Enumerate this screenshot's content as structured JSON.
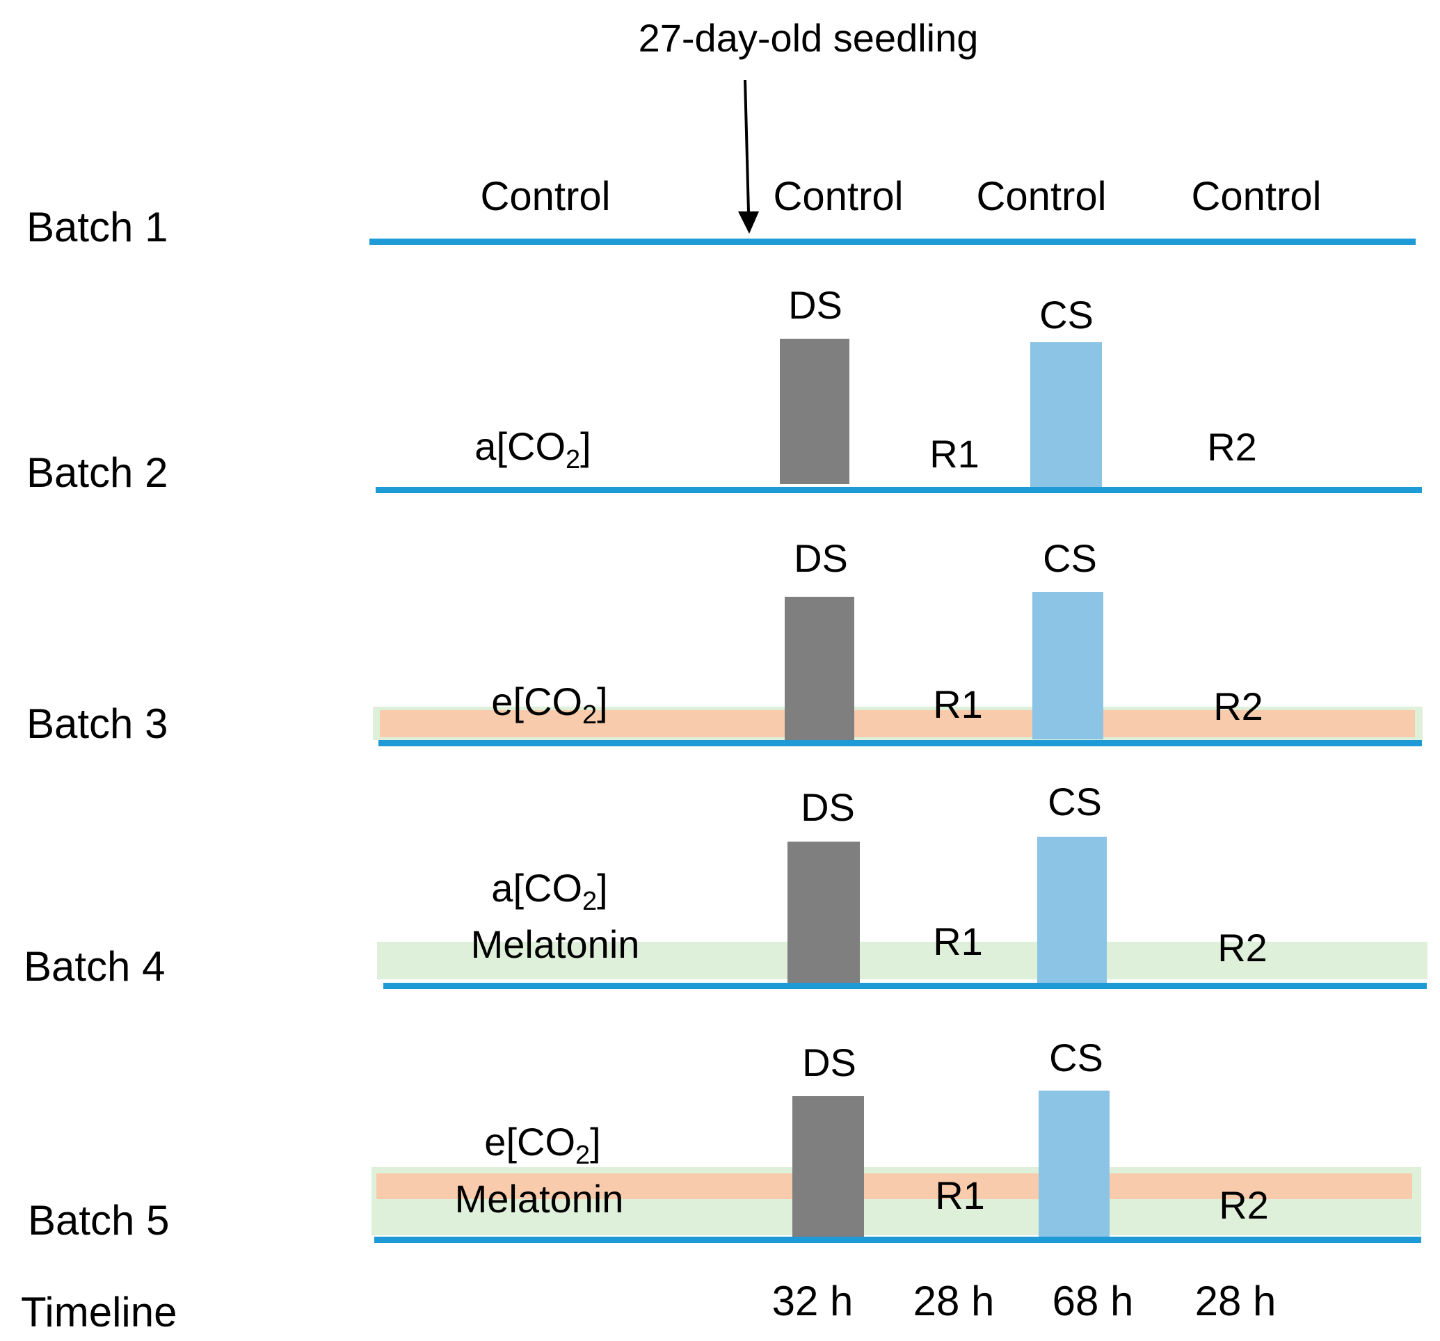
{
  "header": {
    "label": "27-day-old seedling"
  },
  "batches": [
    {
      "label": "Batch 1",
      "phases": [
        "Control",
        "Control",
        "Control",
        "Control"
      ]
    },
    {
      "label": "Batch 2",
      "treatment": [
        "a[CO",
        "2",
        "]"
      ],
      "ds": "DS",
      "cs": "CS",
      "r1": "R1",
      "r2": "R2"
    },
    {
      "label": "Batch 3",
      "treatment": [
        "e[CO",
        "2",
        "]"
      ],
      "ds": "DS",
      "cs": "CS",
      "r1": "R1",
      "r2": "R2"
    },
    {
      "label": "Batch 4",
      "treatment": [
        "a[CO",
        "2",
        "]"
      ],
      "extra": "Melatonin",
      "ds": "DS",
      "cs": "CS",
      "r1": "R1",
      "r2": "R2"
    },
    {
      "label": "Batch 5",
      "treatment": [
        "e[CO",
        "2",
        "]"
      ],
      "extra": "Melatonin",
      "ds": "DS",
      "cs": "CS",
      "r1": "R1",
      "r2": "R2"
    }
  ],
  "timeline": {
    "label": "Timeline",
    "durations": [
      "32 h",
      "28 h",
      "68 h",
      "28 h"
    ]
  },
  "colors": {
    "baseline": "#1E9AD6",
    "drought_bar": "#7F7F7F",
    "cold_bar": "#8CC4E6",
    "elevated_co2_band": "#F9CBAD",
    "melatonin_band": "#DFF0DA"
  }
}
